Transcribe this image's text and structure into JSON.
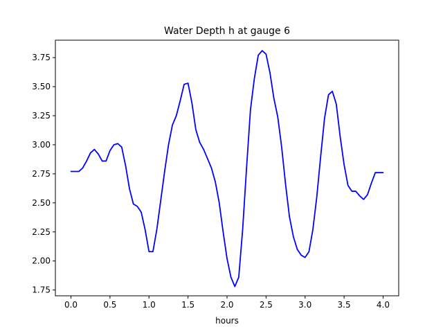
{
  "chart_data": {
    "type": "line",
    "title": "Water Depth h at gauge 6",
    "xlabel": "hours",
    "ylabel": "",
    "xlim": [
      -0.2,
      4.2
    ],
    "ylim": [
      1.7,
      3.9
    ],
    "grid": false,
    "xticks": [
      0.0,
      0.5,
      1.0,
      1.5,
      2.0,
      2.5,
      3.0,
      3.5,
      4.0
    ],
    "xtick_labels": [
      "0.0",
      "0.5",
      "1.0",
      "1.5",
      "2.0",
      "2.5",
      "3.0",
      "3.5",
      "4.0"
    ],
    "yticks": [
      1.75,
      2.0,
      2.25,
      2.5,
      2.75,
      3.0,
      3.25,
      3.5,
      3.75
    ],
    "ytick_labels": [
      "1.75",
      "2.00",
      "2.25",
      "2.50",
      "2.75",
      "3.00",
      "3.25",
      "3.50",
      "3.75"
    ],
    "series": [
      {
        "color": "#0000ff",
        "x": [
          0.0,
          0.1,
          0.15,
          0.2,
          0.25,
          0.3,
          0.35,
          0.4,
          0.45,
          0.5,
          0.55,
          0.6,
          0.65,
          0.7,
          0.75,
          0.8,
          0.85,
          0.9,
          0.95,
          1.0,
          1.05,
          1.1,
          1.15,
          1.2,
          1.25,
          1.3,
          1.35,
          1.4,
          1.45,
          1.5,
          1.55,
          1.6,
          1.65,
          1.7,
          1.75,
          1.8,
          1.85,
          1.9,
          1.95,
          2.0,
          2.05,
          2.1,
          2.15,
          2.2,
          2.25,
          2.3,
          2.35,
          2.4,
          2.45,
          2.5,
          2.55,
          2.6,
          2.65,
          2.7,
          2.75,
          2.8,
          2.85,
          2.9,
          2.95,
          3.0,
          3.05,
          3.1,
          3.15,
          3.2,
          3.25,
          3.3,
          3.35,
          3.4,
          3.45,
          3.5,
          3.55,
          3.6,
          3.65,
          3.7,
          3.75,
          3.8,
          3.85,
          3.9,
          3.95,
          4.0
        ],
        "y": [
          2.77,
          2.77,
          2.8,
          2.86,
          2.93,
          2.96,
          2.92,
          2.86,
          2.86,
          2.95,
          3.0,
          3.01,
          2.98,
          2.82,
          2.62,
          2.49,
          2.47,
          2.42,
          2.27,
          2.08,
          2.08,
          2.27,
          2.52,
          2.77,
          3.0,
          3.17,
          3.25,
          3.38,
          3.52,
          3.53,
          3.36,
          3.13,
          3.02,
          2.96,
          2.88,
          2.8,
          2.68,
          2.5,
          2.25,
          2.02,
          1.86,
          1.78,
          1.86,
          2.27,
          2.8,
          3.3,
          3.57,
          3.77,
          3.81,
          3.78,
          3.62,
          3.4,
          3.24,
          2.98,
          2.66,
          2.38,
          2.21,
          2.1,
          2.05,
          2.03,
          2.08,
          2.27,
          2.55,
          2.9,
          3.23,
          3.43,
          3.46,
          3.35,
          3.07,
          2.83,
          2.65,
          2.6,
          2.6,
          2.56,
          2.53,
          2.57,
          2.67,
          2.76,
          2.76,
          2.76
        ]
      }
    ]
  }
}
